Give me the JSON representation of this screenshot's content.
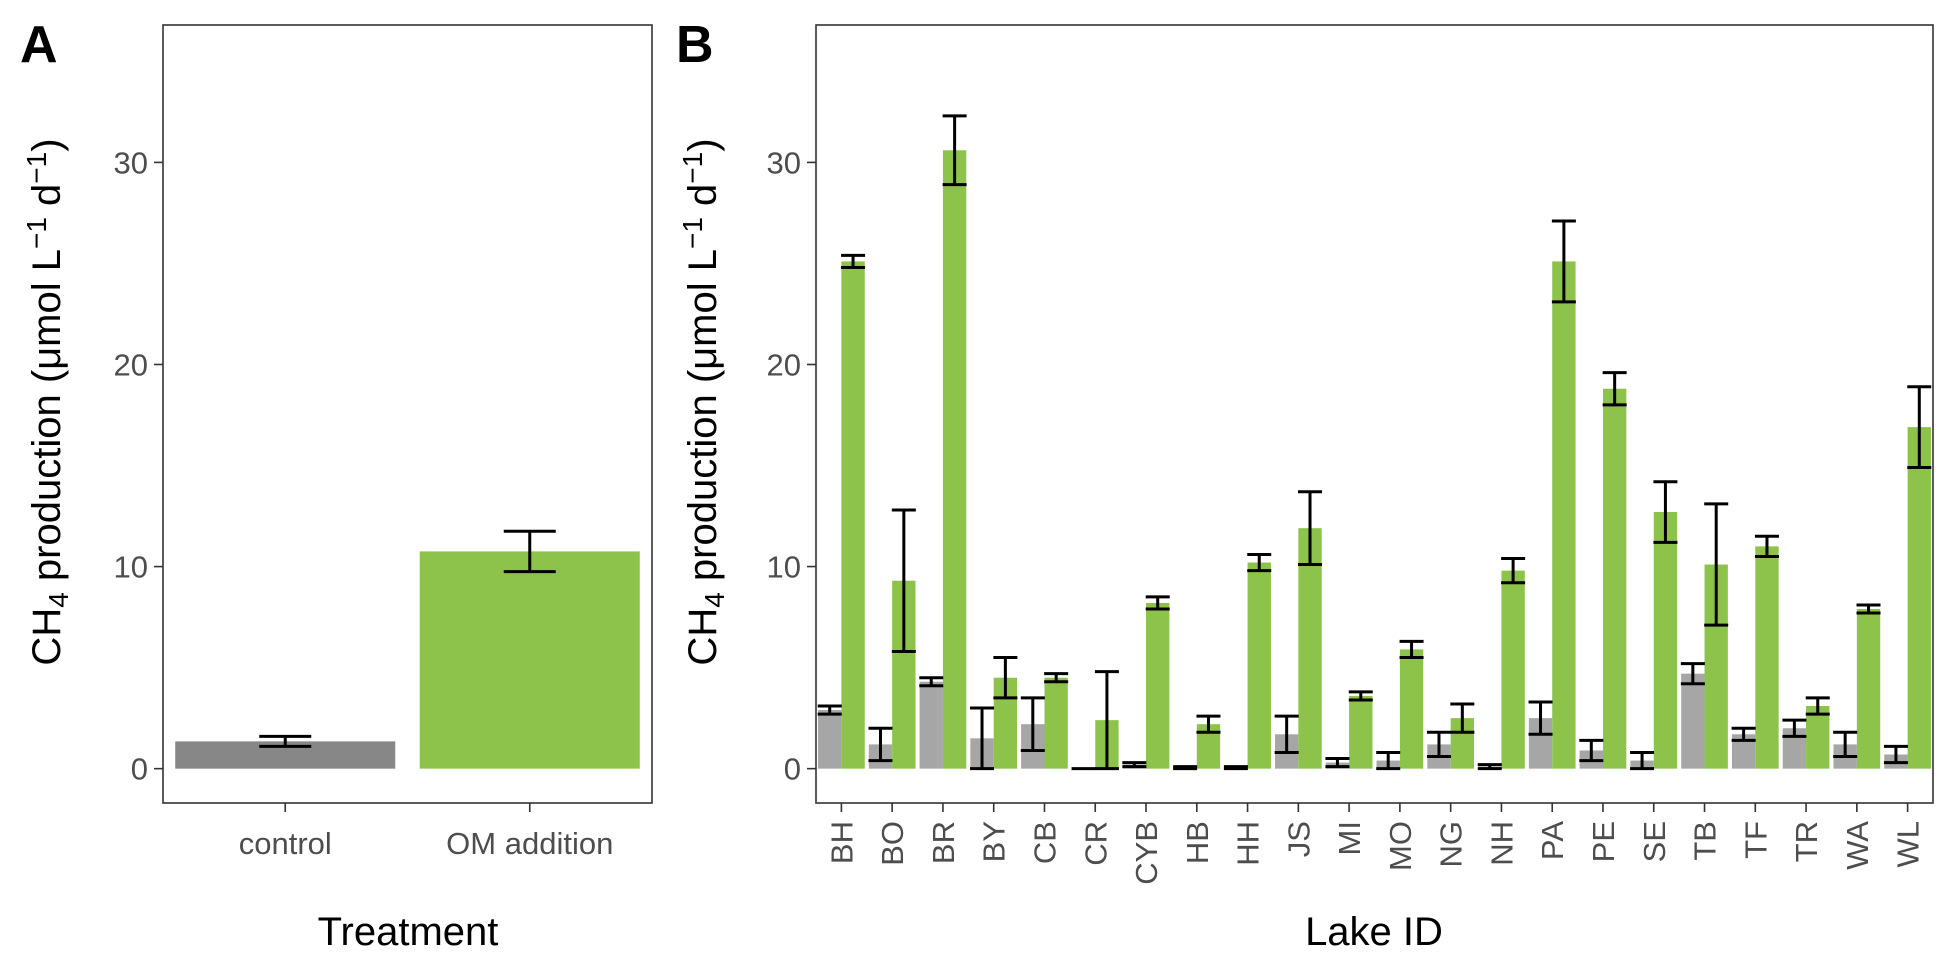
{
  "chart_data": [
    {
      "type": "bar",
      "panel_label": "A",
      "xlabel": "Treatment",
      "ylabel": "CH4 production (μmol L−1 d−1)",
      "ylim": [
        -1.7,
        36.8
      ],
      "yticks": [
        0,
        10,
        20,
        30
      ],
      "grid": false,
      "categories": [
        "control",
        "OM addition"
      ],
      "values": [
        1.35,
        10.75
      ],
      "errors": [
        0.25,
        1.0
      ],
      "colors": [
        "#878787",
        "#8dc34a"
      ]
    },
    {
      "type": "bar",
      "panel_label": "B",
      "xlabel": "Lake ID",
      "ylabel": "CH4 production (μmol L−1 d−1)",
      "ylim": [
        -1.7,
        36.8
      ],
      "yticks": [
        0,
        10,
        20,
        30
      ],
      "grid": false,
      "categories": [
        "BH",
        "BO",
        "BR",
        "BY",
        "CB",
        "CR",
        "CYB",
        "HB",
        "HH",
        "JS",
        "MI",
        "MO",
        "NG",
        "NH",
        "PA",
        "PE",
        "SE",
        "TB",
        "TF",
        "TR",
        "WA",
        "WL"
      ],
      "series": [
        {
          "color": "#a6a6a6",
          "values": [
            2.9,
            1.2,
            4.3,
            1.5,
            2.2,
            0.0,
            0.2,
            0.05,
            0.05,
            1.7,
            0.3,
            0.4,
            1.2,
            0.1,
            2.5,
            0.9,
            0.4,
            4.7,
            1.7,
            2.0,
            1.2,
            0.7
          ],
          "errors": [
            0.2,
            0.8,
            0.2,
            1.5,
            1.3,
            0.0,
            0.1,
            0.05,
            0.05,
            0.9,
            0.2,
            0.4,
            0.6,
            0.1,
            0.8,
            0.5,
            0.4,
            0.5,
            0.3,
            0.4,
            0.6,
            0.4
          ]
        },
        {
          "color": "#8dc34a",
          "values": [
            25.1,
            9.3,
            30.6,
            4.5,
            4.5,
            2.4,
            8.2,
            2.2,
            10.2,
            11.9,
            3.6,
            5.9,
            2.5,
            9.8,
            25.1,
            18.8,
            12.7,
            10.1,
            11.0,
            3.1,
            7.9,
            16.9
          ],
          "errors": [
            0.3,
            3.5,
            1.7,
            1.0,
            0.2,
            2.4,
            0.3,
            0.4,
            0.4,
            1.8,
            0.2,
            0.4,
            0.7,
            0.6,
            2.0,
            0.8,
            1.5,
            3.0,
            0.5,
            0.4,
            0.2,
            2.0
          ]
        }
      ]
    }
  ]
}
